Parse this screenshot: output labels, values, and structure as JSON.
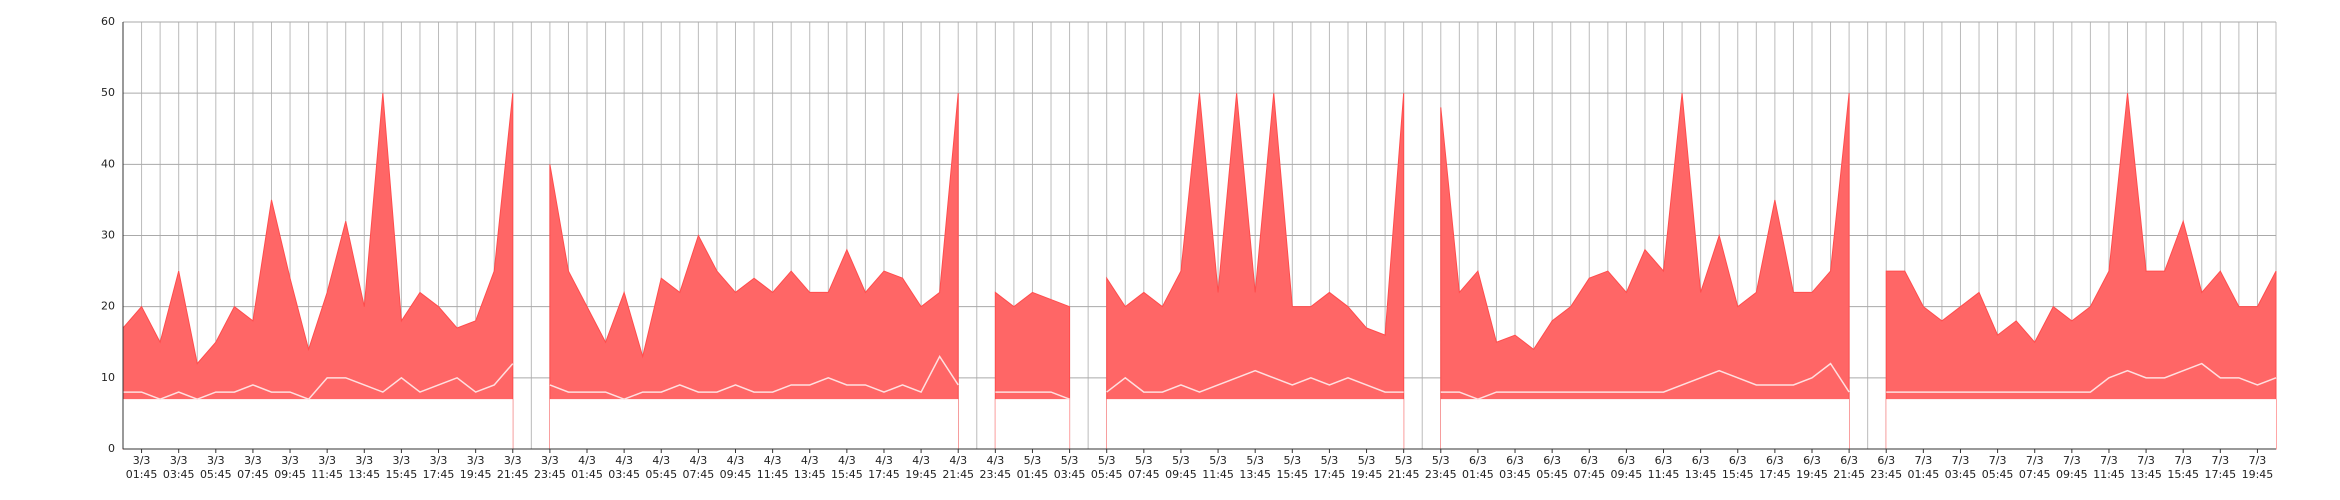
{
  "chart_data": {
    "type": "range-area",
    "categories": [
      null,
      "3/3 01:45",
      null,
      "3/3 03:45",
      null,
      "3/3 05:45",
      null,
      "3/3 07:45",
      null,
      "3/3 09:45",
      null,
      "3/3 11:45",
      null,
      "3/3 13:45",
      null,
      "3/3 15:45",
      null,
      "3/3 17:45",
      null,
      "3/3 19:45",
      null,
      "3/3 21:45",
      null,
      "3/3 23:45",
      null,
      "4/3 01:45",
      null,
      "4/3 03:45",
      null,
      "4/3 05:45",
      null,
      "4/3 07:45",
      null,
      "4/3 09:45",
      null,
      "4/3 11:45",
      null,
      "4/3 13:45",
      null,
      "4/3 15:45",
      null,
      "4/3 17:45",
      null,
      "4/3 19:45",
      null,
      "4/3 21:45",
      null,
      "4/3 23:45",
      null,
      "5/3 01:45",
      null,
      "5/3 03:45",
      null,
      "5/3 05:45",
      null,
      "5/3 07:45",
      null,
      "5/3 09:45",
      null,
      "5/3 11:45",
      null,
      "5/3 13:45",
      null,
      "5/3 15:45",
      null,
      "5/3 17:45",
      null,
      "5/3 19:45",
      null,
      "5/3 21:45",
      null,
      "5/3 23:45",
      null,
      "6/3 01:45",
      null,
      "6/3 03:45",
      null,
      "6/3 05:45",
      null,
      "6/3 07:45",
      null,
      "6/3 09:45",
      null,
      "6/3 11:45",
      null,
      "6/3 13:45",
      null,
      "6/3 15:45",
      null,
      "6/3 17:45",
      null,
      "6/3 19:45",
      null,
      "6/3 21:45",
      null,
      "6/3 23:45",
      null,
      "7/3 01:45",
      null,
      "7/3 03:45",
      null,
      "7/3 05:45",
      null,
      "7/3 07:45",
      null,
      "7/3 09:45",
      null,
      "7/3 11:45",
      null,
      "7/3 13:45",
      null,
      "7/3 15:45",
      null,
      "7/3 17:45",
      null,
      "7/3 19:45",
      null
    ],
    "series": [
      {
        "color": "#ff6666",
        "values": [
          17,
          20,
          15,
          25,
          12,
          15,
          20,
          18,
          35,
          24,
          14,
          22,
          32,
          20,
          50,
          18,
          22,
          20,
          17,
          18,
          25,
          50,
          null,
          40,
          25,
          20,
          15,
          22,
          13,
          24,
          22,
          30,
          25,
          22,
          24,
          22,
          25,
          22,
          22,
          28,
          22,
          25,
          24,
          20,
          22,
          50,
          null,
          22,
          20,
          22,
          21,
          20,
          null,
          24,
          20,
          22,
          20,
          25,
          50,
          22,
          50,
          22,
          50,
          20,
          20,
          22,
          20,
          17,
          16,
          50,
          null,
          48,
          22,
          25,
          15,
          16,
          14,
          18,
          20,
          24,
          25,
          22,
          28,
          25,
          50,
          22,
          30,
          20,
          22,
          35,
          22,
          22,
          25,
          50,
          null,
          25,
          25,
          20,
          18,
          20,
          22,
          16,
          18,
          15,
          20,
          18,
          20,
          25,
          50,
          25,
          25,
          32,
          22,
          25,
          20,
          20,
          25
        ]
      },
      {
        "color": "#ffffff",
        "values": [
          7,
          7,
          7,
          7,
          7,
          7,
          7,
          7,
          7,
          7,
          7,
          7,
          7,
          7,
          7,
          7,
          7,
          7,
          7,
          7,
          7,
          7,
          null,
          7,
          7,
          7,
          7,
          7,
          7,
          7,
          7,
          7,
          7,
          7,
          7,
          7,
          7,
          7,
          7,
          7,
          7,
          7,
          7,
          7,
          7,
          7,
          null,
          7,
          7,
          7,
          7,
          7,
          null,
          7,
          7,
          7,
          7,
          7,
          7,
          7,
          7,
          7,
          7,
          7,
          7,
          7,
          7,
          7,
          7,
          7,
          null,
          7,
          7,
          7,
          7,
          7,
          7,
          7,
          7,
          7,
          7,
          7,
          7,
          7,
          7,
          7,
          7,
          7,
          7,
          7,
          7,
          7,
          7,
          7,
          null,
          7,
          7,
          7,
          7,
          7,
          7,
          7,
          7,
          7,
          7,
          7,
          7,
          7,
          7,
          7,
          7,
          7,
          7,
          7,
          7,
          7,
          7
        ]
      },
      {
        "color": "#ffe0e0",
        "values": [
          8,
          8,
          7,
          8,
          7,
          8,
          8,
          9,
          8,
          8,
          7,
          10,
          10,
          9,
          8,
          10,
          8,
          9,
          10,
          8,
          9,
          12,
          null,
          9,
          8,
          8,
          8,
          7,
          8,
          8,
          9,
          8,
          8,
          9,
          8,
          8,
          9,
          9,
          10,
          9,
          9,
          8,
          9,
          8,
          13,
          9,
          null,
          8,
          8,
          8,
          8,
          7,
          null,
          8,
          10,
          8,
          8,
          9,
          8,
          9,
          10,
          11,
          10,
          9,
          10,
          9,
          10,
          9,
          8,
          8,
          null,
          8,
          8,
          7,
          8,
          8,
          8,
          8,
          8,
          8,
          8,
          8,
          8,
          8,
          9,
          10,
          11,
          10,
          9,
          9,
          9,
          10,
          12,
          8,
          null,
          8,
          8,
          8,
          8,
          8,
          8,
          8,
          8,
          8,
          8,
          8,
          8,
          10,
          11,
          10,
          10,
          11,
          12,
          10,
          10,
          9,
          10
        ]
      }
    ],
    "ylim": [
      0,
      60
    ],
    "yticks": [
      0,
      10,
      20,
      30,
      40,
      50,
      60
    ],
    "grid": true
  }
}
